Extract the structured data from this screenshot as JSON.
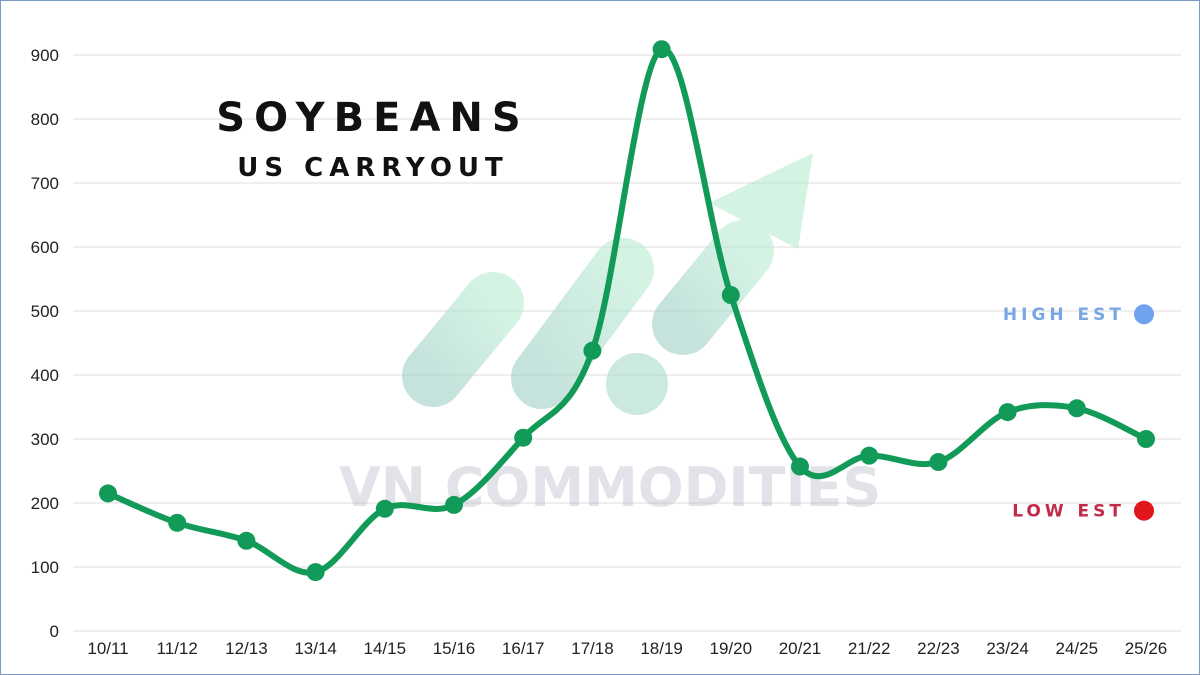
{
  "chart_data": {
    "type": "line",
    "title": "SOYBEANS",
    "subtitle": "US CARRYOUT",
    "categories": [
      "10/11",
      "11/12",
      "12/13",
      "13/14",
      "14/15",
      "15/16",
      "16/17",
      "17/18",
      "18/19",
      "19/20",
      "20/21",
      "21/22",
      "22/23",
      "23/24",
      "24/25",
      "25/26"
    ],
    "series": [
      {
        "values": [
          215,
          169,
          141,
          92,
          191,
          197,
          302,
          438,
          909,
          525,
          257,
          274,
          264,
          342,
          348,
          300
        ]
      }
    ],
    "ylim": [
      0,
      900
    ],
    "yticks": [
      0,
      100,
      200,
      300,
      400,
      500,
      600,
      700,
      800,
      900
    ],
    "grid": true,
    "line_color": "#129a59",
    "annotations": [
      {
        "label": "HIGH EST",
        "value": 495,
        "color": "#7aa6e3",
        "dot_color": "#6fa3ee"
      },
      {
        "label": "LOW EST",
        "value": 188,
        "color": "#c22a4a",
        "dot_color": "#e0161c"
      }
    ]
  },
  "watermark": {
    "text": "VN COMMODITIES"
  }
}
